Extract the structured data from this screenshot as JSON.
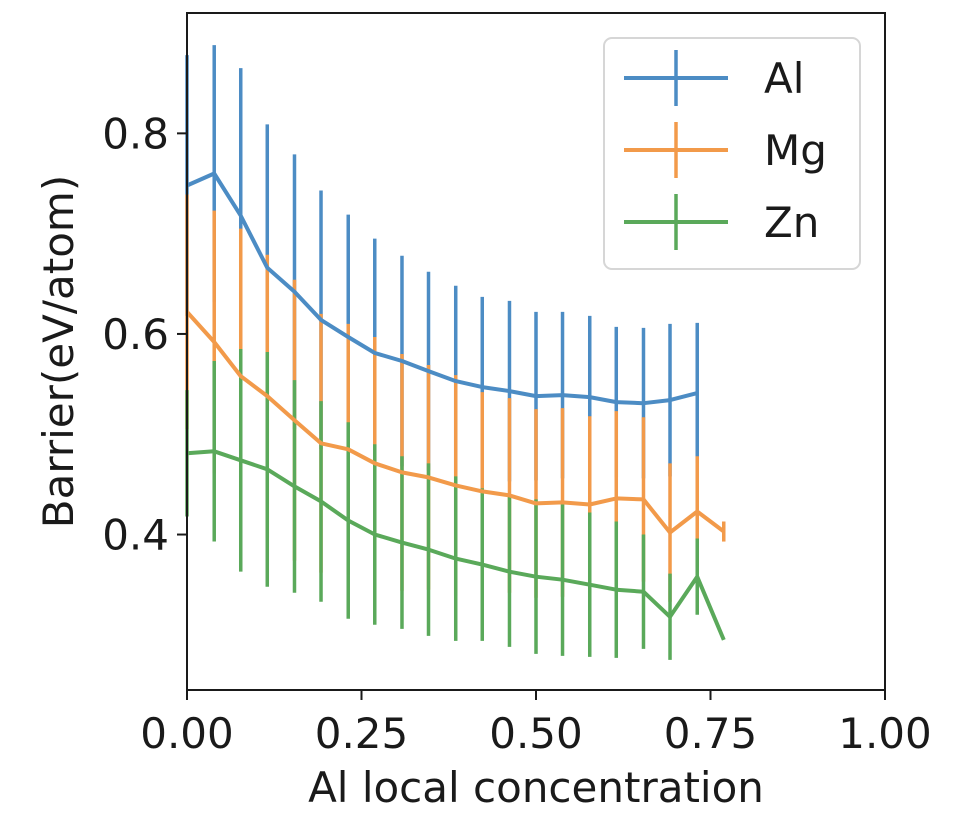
{
  "chart_data": {
    "type": "line",
    "title": "",
    "xlabel": "Al local concentration",
    "ylabel": "Barrier(eV/atom)",
    "xlim": [
      0.0,
      1.0
    ],
    "ylim": [
      0.245,
      0.92
    ],
    "xticks": [
      0.0,
      0.25,
      0.5,
      0.75,
      1.0
    ],
    "xtick_labels": [
      "0.00",
      "0.25",
      "0.50",
      "0.75",
      "1.00"
    ],
    "yticks": [
      0.4,
      0.6,
      0.8
    ],
    "ytick_labels": [
      "0.4",
      "0.6",
      "0.8"
    ],
    "grid": false,
    "legend_position": "top-right",
    "error_bars": true,
    "series": [
      {
        "name": "Al",
        "color": "#4c8cc4",
        "x": [
          0.0,
          0.039,
          0.077,
          0.115,
          0.154,
          0.192,
          0.231,
          0.269,
          0.308,
          0.346,
          0.385,
          0.423,
          0.462,
          0.5,
          0.538,
          0.577,
          0.615,
          0.654,
          0.692,
          0.731
        ],
        "y": [
          0.748,
          0.76,
          0.718,
          0.666,
          0.642,
          0.614,
          0.597,
          0.581,
          0.573,
          0.563,
          0.553,
          0.547,
          0.543,
          0.538,
          0.539,
          0.537,
          0.532,
          0.531,
          0.534,
          0.541
        ],
        "yerr": [
          0.13,
          0.128,
          0.147,
          0.143,
          0.137,
          0.129,
          0.122,
          0.114,
          0.105,
          0.099,
          0.095,
          0.09,
          0.09,
          0.084,
          0.083,
          0.081,
          0.075,
          0.075,
          0.076,
          0.07
        ]
      },
      {
        "name": "Mg",
        "color": "#f29a4a",
        "x": [
          0.0,
          0.039,
          0.077,
          0.115,
          0.154,
          0.192,
          0.231,
          0.269,
          0.308,
          0.346,
          0.385,
          0.423,
          0.462,
          0.5,
          0.538,
          0.577,
          0.615,
          0.654,
          0.692,
          0.731,
          0.769
        ],
        "y": [
          0.622,
          0.592,
          0.558,
          0.538,
          0.514,
          0.491,
          0.485,
          0.471,
          0.462,
          0.457,
          0.449,
          0.443,
          0.439,
          0.431,
          0.432,
          0.43,
          0.436,
          0.435,
          0.402,
          0.423,
          0.403
        ],
        "yerr": [
          0.117,
          0.131,
          0.147,
          0.141,
          0.14,
          0.129,
          0.125,
          0.126,
          0.118,
          0.112,
          0.11,
          0.099,
          0.097,
          0.094,
          0.094,
          0.088,
          0.087,
          0.082,
          0.069,
          0.055,
          0.01
        ]
      },
      {
        "name": "Zn",
        "color": "#5aa95a",
        "x": [
          0.0,
          0.039,
          0.077,
          0.115,
          0.154,
          0.192,
          0.231,
          0.269,
          0.308,
          0.346,
          0.385,
          0.423,
          0.462,
          0.5,
          0.538,
          0.577,
          0.615,
          0.654,
          0.692,
          0.731,
          0.769
        ],
        "y": [
          0.481,
          0.483,
          0.474,
          0.465,
          0.448,
          0.433,
          0.414,
          0.4,
          0.392,
          0.385,
          0.376,
          0.37,
          0.363,
          0.358,
          0.355,
          0.35,
          0.345,
          0.343,
          0.318,
          0.358,
          0.295
        ],
        "yerr": [
          0.063,
          0.09,
          0.111,
          0.117,
          0.106,
          0.1,
          0.098,
          0.09,
          0.086,
          0.086,
          0.082,
          0.076,
          0.075,
          0.077,
          0.076,
          0.072,
          0.068,
          0.057,
          0.043,
          0.038,
          0.0
        ]
      }
    ]
  }
}
